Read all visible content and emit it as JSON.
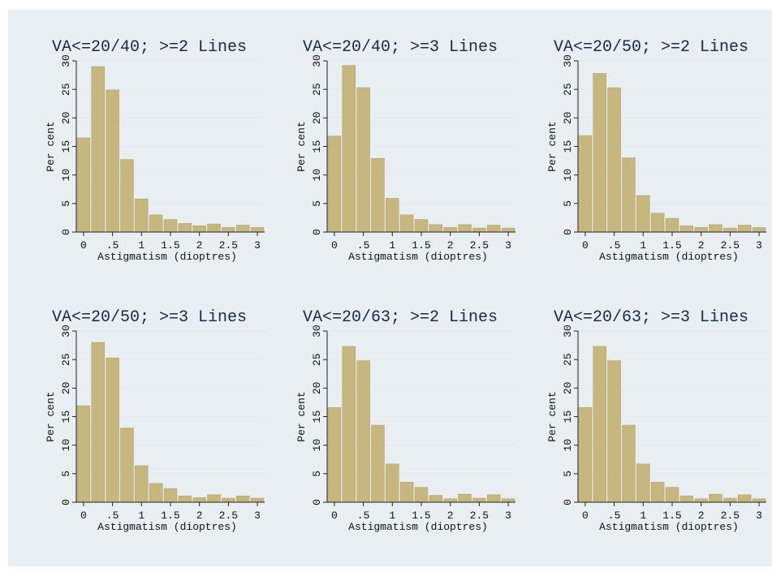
{
  "chart_data": [
    {
      "type": "bar",
      "title": "VA<=20/40; >=2 Lines",
      "xlabel": "Astigmatism (dioptres)",
      "ylabel": "Per cent",
      "x_ticks": [
        "0",
        ".5",
        "1",
        "1.5",
        "2",
        "2.5",
        "3"
      ],
      "y_ticks": [
        "0",
        "5",
        "10",
        "15",
        "20",
        "25",
        "30"
      ],
      "ylim": [
        0,
        30
      ],
      "xlim": [
        -0.125,
        3.125
      ],
      "bin_width": 0.25,
      "x": [
        0,
        0.25,
        0.5,
        0.75,
        1,
        1.25,
        1.5,
        1.75,
        2,
        2.25,
        2.5,
        2.75,
        3
      ],
      "values": [
        16.5,
        29,
        24.9,
        12.7,
        5.8,
        3,
        2.2,
        1.5,
        1.1,
        1.4,
        0.8,
        1.2,
        0.8
      ],
      "grid": true,
      "bar_color": "#c6b77e"
    },
    {
      "type": "bar",
      "title": "VA<=20/40; >=3 Lines",
      "xlabel": "Astigmatism (dioptres)",
      "ylabel": "Per cent",
      "x_ticks": [
        "0",
        ".5",
        "1",
        "1.5",
        "2",
        "2.5",
        "3"
      ],
      "y_ticks": [
        "0",
        "5",
        "10",
        "15",
        "20",
        "25",
        "30"
      ],
      "ylim": [
        0,
        30
      ],
      "xlim": [
        -0.125,
        3.125
      ],
      "bin_width": 0.25,
      "x": [
        0,
        0.25,
        0.5,
        0.75,
        1,
        1.25,
        1.5,
        1.75,
        2,
        2.25,
        2.5,
        2.75,
        3
      ],
      "values": [
        16.8,
        29.2,
        25.3,
        12.9,
        5.9,
        3,
        2.2,
        1.3,
        0.8,
        1.3,
        0.7,
        1.2,
        0.7
      ],
      "grid": true,
      "bar_color": "#c6b77e"
    },
    {
      "type": "bar",
      "title": "VA<=20/50; >=2 Lines",
      "xlabel": "Astigmatism (dioptres)",
      "ylabel": "Per cent",
      "x_ticks": [
        "0",
        ".5",
        "1",
        "1.5",
        "2",
        "2.5",
        "3"
      ],
      "y_ticks": [
        "0",
        "5",
        "10",
        "15",
        "20",
        "25",
        "30"
      ],
      "ylim": [
        0,
        30
      ],
      "xlim": [
        -0.125,
        3.125
      ],
      "bin_width": 0.25,
      "x": [
        0,
        0.25,
        0.5,
        0.75,
        1,
        1.25,
        1.5,
        1.75,
        2,
        2.25,
        2.5,
        2.75,
        3
      ],
      "values": [
        16.9,
        27.8,
        25.3,
        13,
        6.4,
        3.3,
        2.4,
        1.1,
        0.8,
        1.3,
        0.7,
        1.2,
        0.8
      ],
      "grid": true,
      "bar_color": "#c6b77e"
    },
    {
      "type": "bar",
      "title": "VA<=20/50; >=3 Lines",
      "xlabel": "Astigmatism (dioptres)",
      "ylabel": "Per cent",
      "x_ticks": [
        "0",
        ".5",
        "1",
        "1.5",
        "2",
        "2.5",
        "3"
      ],
      "y_ticks": [
        "0",
        "5",
        "10",
        "15",
        "20",
        "25",
        "30"
      ],
      "ylim": [
        0,
        30
      ],
      "xlim": [
        -0.125,
        3.125
      ],
      "bin_width": 0.25,
      "x": [
        0,
        0.25,
        0.5,
        0.75,
        1,
        1.25,
        1.5,
        1.75,
        2,
        2.25,
        2.5,
        2.75,
        3
      ],
      "values": [
        16.9,
        28,
        25.3,
        13,
        6.4,
        3.3,
        2.4,
        1.1,
        0.8,
        1.3,
        0.7,
        1.1,
        0.7
      ],
      "grid": true,
      "bar_color": "#c6b77e"
    },
    {
      "type": "bar",
      "title": "VA<=20/63; >=2 Lines",
      "xlabel": "Astigmatism (dioptres)",
      "ylabel": "Per cent",
      "x_ticks": [
        "0",
        ".5",
        "1",
        "1.5",
        "2",
        "2.5",
        "3"
      ],
      "y_ticks": [
        "0",
        "5",
        "10",
        "15",
        "20",
        "25",
        "30"
      ],
      "ylim": [
        0,
        30
      ],
      "xlim": [
        -0.125,
        3.125
      ],
      "bin_width": 0.25,
      "x": [
        0,
        0.25,
        0.5,
        0.75,
        1,
        1.25,
        1.5,
        1.75,
        2,
        2.25,
        2.5,
        2.75,
        3
      ],
      "values": [
        16.6,
        27.3,
        24.8,
        13.5,
        6.7,
        3.5,
        2.6,
        1.2,
        0.6,
        1.4,
        0.7,
        1.3,
        0.6
      ],
      "grid": true,
      "bar_color": "#c6b77e"
    },
    {
      "type": "bar",
      "title": "VA<=20/63; >=3 Lines",
      "xlabel": "Astigmatism (dioptres)",
      "ylabel": "Per cent",
      "x_ticks": [
        "0",
        ".5",
        "1",
        "1.5",
        "2",
        "2.5",
        "3"
      ],
      "y_ticks": [
        "0",
        "5",
        "10",
        "15",
        "20",
        "25",
        "30"
      ],
      "ylim": [
        0,
        30
      ],
      "xlim": [
        -0.125,
        3.125
      ],
      "bin_width": 0.25,
      "x": [
        0,
        0.25,
        0.5,
        0.75,
        1,
        1.25,
        1.5,
        1.75,
        2,
        2.25,
        2.5,
        2.75,
        3
      ],
      "values": [
        16.6,
        27.3,
        24.8,
        13.5,
        6.7,
        3.5,
        2.6,
        1.1,
        0.6,
        1.4,
        0.7,
        1.3,
        0.6
      ],
      "grid": true,
      "bar_color": "#c6b77e"
    }
  ]
}
